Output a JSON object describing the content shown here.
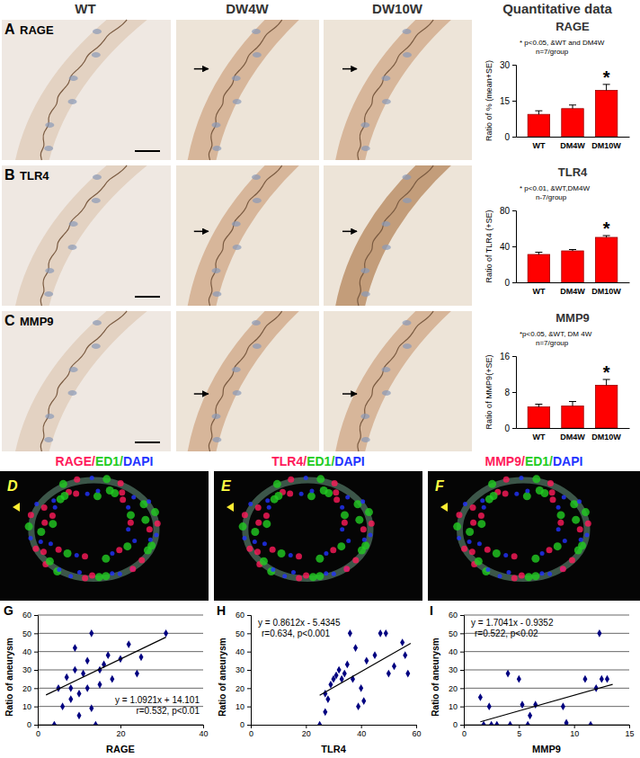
{
  "figure": {
    "columns": [
      "WT",
      "DW4W",
      "DW10W",
      "Quantitative data"
    ],
    "image_rows": [
      {
        "panel": "A",
        "label": "RAGE"
      },
      {
        "panel": "B",
        "label": "TLR4"
      },
      {
        "panel": "C",
        "label": "MMP9"
      }
    ],
    "fluorescence": [
      {
        "panel": "D",
        "channels": [
          {
            "text": "RAGE/",
            "color": "#ff1a5a"
          },
          {
            "text": "ED1/",
            "color": "#22cc22"
          },
          {
            "text": "DAPI",
            "color": "#2233ff"
          }
        ]
      },
      {
        "panel": "E",
        "channels": [
          {
            "text": "TLR4/",
            "color": "#ff1a5a"
          },
          {
            "text": "ED1/",
            "color": "#22cc22"
          },
          {
            "text": "DAPI",
            "color": "#2233ff"
          }
        ]
      },
      {
        "panel": "F",
        "channels": [
          {
            "text": "MMP9/",
            "color": "#ff1a5a"
          },
          {
            "text": "ED1/",
            "color": "#22cc22"
          },
          {
            "text": "DAPI",
            "color": "#2233ff"
          }
        ]
      }
    ]
  },
  "chart_data": [
    {
      "type": "bar",
      "title": "RAGE",
      "y_label": "Ratio of % (mean+SE)",
      "categories": [
        "WT",
        "DM4W",
        "DM10W"
      ],
      "values": [
        9.3,
        11.7,
        19.3
      ],
      "errors": [
        1.5,
        1.5,
        2.5
      ],
      "color": "#ff0000",
      "ylim": [
        0,
        30
      ],
      "yticks": [
        0,
        15,
        30
      ],
      "annotations": [
        "* p<0.05, &WT and DM4W",
        "n=7/group"
      ],
      "significance": {
        "label": "*",
        "category": 2
      }
    },
    {
      "type": "bar",
      "title": "TLR4",
      "y_label": "Ratio of TLR4 (+SE)",
      "categories": [
        "WT",
        "DM4W",
        "DM10W"
      ],
      "values": [
        31,
        35,
        50
      ],
      "errors": [
        2.5,
        1.5,
        2
      ],
      "color": "#ff0000",
      "ylim": [
        0,
        80
      ],
      "yticks": [
        0,
        40,
        80
      ],
      "annotations": [
        "* p<0.01, &WT,DM4W",
        "n-7/group"
      ],
      "significance": {
        "label": "*",
        "category": 2
      }
    },
    {
      "type": "bar",
      "title": "MMP9",
      "y_label": "Ratio of MMP9(+SE)",
      "categories": [
        "WT",
        "DM4W",
        "DM10W"
      ],
      "values": [
        4.7,
        4.9,
        9.5
      ],
      "errors": [
        0.6,
        1.0,
        1.3
      ],
      "color": "#ff0000",
      "ylim": [
        0,
        16
      ],
      "yticks": [
        0,
        8,
        16
      ],
      "annotations": [
        "*p<0.05, &WT, DM 4W",
        "n=7/group"
      ],
      "significance": {
        "label": "*",
        "category": 2
      }
    },
    {
      "type": "scatter",
      "panel": "G",
      "x_label": "RAGE",
      "y_label": "Ratio of aneurysm",
      "x": [
        4,
        5,
        6,
        7,
        8,
        8,
        9,
        9,
        10,
        10,
        11,
        12,
        12,
        13,
        13,
        14,
        15,
        15,
        16,
        17,
        18,
        20,
        22,
        24,
        25,
        31
      ],
      "values": [
        0,
        20,
        10,
        26,
        14,
        20,
        30,
        42,
        17,
        5,
        28,
        20,
        35,
        9,
        50,
        0,
        30,
        22,
        33,
        38,
        25,
        36,
        44,
        28,
        37,
        50
      ],
      "color": "#000080",
      "marker": "diamond",
      "xlim": [
        0,
        40
      ],
      "xticks": [
        0,
        20,
        40
      ],
      "ylim": [
        0,
        60
      ],
      "yticks": [
        0,
        10,
        20,
        30,
        40,
        50,
        60
      ],
      "grid": true,
      "trendline": {
        "x": [
          2,
          31
        ],
        "values": [
          16.3,
          47.9
        ]
      },
      "annotations": [
        "y = 1.0921x + 14.101",
        "r=0.532, p<0.01"
      ]
    },
    {
      "type": "scatter",
      "panel": "H",
      "x_label": "TLR4",
      "y_label": "Ratio of aneurysm",
      "x": [
        25,
        27,
        27,
        28,
        29,
        30,
        31,
        32,
        33,
        34,
        35,
        36,
        37,
        38,
        39,
        40,
        41,
        42,
        45,
        47,
        49,
        50,
        52,
        55,
        56,
        57
      ],
      "values": [
        0,
        7,
        17,
        14,
        22,
        25,
        27,
        30,
        25,
        28,
        33,
        50,
        25,
        42,
        10,
        20,
        13,
        35,
        38,
        50,
        50,
        28,
        32,
        45,
        38,
        28
      ],
      "color": "#000080",
      "marker": "diamond",
      "xlim": [
        0,
        60
      ],
      "xticks": [
        0,
        20,
        40,
        60
      ],
      "ylim": [
        0,
        60
      ],
      "yticks": [
        0,
        10,
        20,
        30,
        40,
        50,
        60
      ],
      "grid": false,
      "trendline": {
        "x": [
          25,
          58
        ],
        "values": [
          16.1,
          44.5
        ]
      },
      "annotations": [
        "y = 0.8612x - 5.4345",
        "r=0.634, p<0.001"
      ]
    },
    {
      "type": "scatter",
      "panel": "I",
      "x_label": "MMP9",
      "y_label": "Ratio of aneurysm",
      "x": [
        1.5,
        1.8,
        2.3,
        2.5,
        3,
        4,
        4.2,
        5,
        5.3,
        5.8,
        6,
        6.5,
        9,
        9.3,
        11,
        11.5,
        12,
        12.3,
        12.5,
        13
      ],
      "values": [
        15,
        0,
        10,
        0,
        0,
        28,
        0,
        25,
        11,
        0,
        5,
        11,
        10,
        1,
        25,
        0,
        20,
        50,
        25,
        25
      ],
      "color": "#000080",
      "marker": "diamond",
      "xlim": [
        0,
        15
      ],
      "xticks": [
        0,
        5,
        10,
        15
      ],
      "ylim": [
        0,
        60
      ],
      "yticks": [
        0,
        10,
        20,
        30,
        40,
        50,
        60
      ],
      "grid": true,
      "trendline": {
        "x": [
          1.5,
          13.5
        ],
        "values": [
          1.6,
          22.1
        ]
      },
      "annotations": [
        "y = 1.7041x - 0.9352",
        "r=0.522, p<0.02"
      ]
    }
  ]
}
